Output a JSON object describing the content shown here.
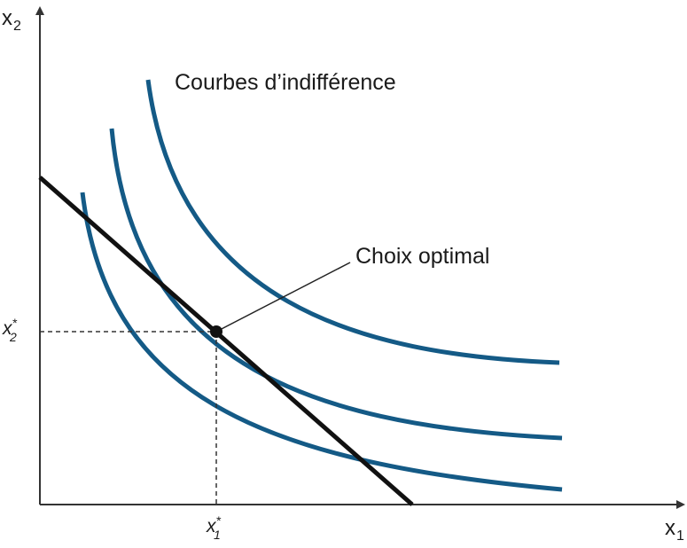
{
  "diagram": {
    "annotation_curves": "Courbes d’indifférence",
    "annotation_optimum": "Choix optimal",
    "axis_y": {
      "var": "x",
      "sub": "2"
    },
    "axis_x": {
      "var": "x",
      "sub": "1"
    },
    "tick_y": {
      "var": "x",
      "star": "*",
      "sub": "2"
    },
    "tick_x": {
      "var": "x",
      "star": "*",
      "sub": "1"
    }
  },
  "colors": {
    "curve": "#145a86",
    "budget_line": "#111111",
    "axis": "#333333"
  }
}
